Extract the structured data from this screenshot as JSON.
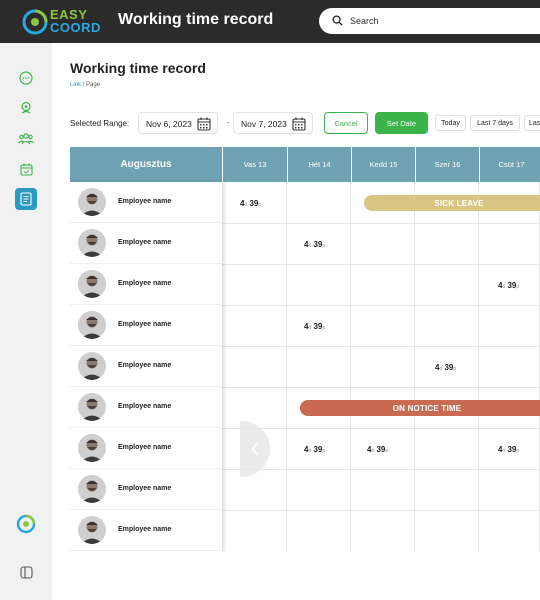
{
  "app": {
    "title": "Working time record",
    "logo_line1": "EASY",
    "logo_line2": "COORD"
  },
  "search": {
    "placeholder": "Search"
  },
  "sidebar": {
    "items": [
      {
        "icon": "chat-bubble-icon"
      },
      {
        "icon": "location-pin-icon"
      },
      {
        "icon": "users-icon"
      },
      {
        "icon": "calendar-icon"
      },
      {
        "icon": "document-icon",
        "active": true
      }
    ],
    "bottom": [
      {
        "icon": "app-logo-icon"
      },
      {
        "icon": "sidebar-toggle-icon"
      }
    ]
  },
  "page": {
    "title": "Working time record",
    "breadcrumb_link": "Link",
    "breadcrumb_sep": "/",
    "breadcrumb_current": "Page"
  },
  "filter": {
    "range_label": "Selected Range:",
    "start_date": "Nov 6, 2023",
    "end_date": "Nov 7, 2023",
    "dash": "-",
    "cancel_label": "Cancel",
    "set_date_label": "Set Date",
    "quick_ranges": [
      "Today",
      "Last 7 days",
      "Las"
    ]
  },
  "grid": {
    "month_header": "Augusztus",
    "days": [
      "Vas 13",
      "Hét 14",
      "Kedd 15",
      "Szer 16",
      "Csüt 17"
    ],
    "employees": [
      "Employee name",
      "Employee name",
      "Employee name",
      "Employee name",
      "Employee name",
      "Employee name",
      "Employee name",
      "Employee name",
      "Employee name"
    ],
    "time_hours": "4",
    "time_minutes": "39",
    "time_unit_h": "ó",
    "time_unit_p": "p",
    "sick_leave_label": "SICK LEAVE",
    "notice_label": "ON NOTICE TIME"
  },
  "colors": {
    "header": "#6fa3b4",
    "accent_green": "#3bb54a",
    "sick_leave": "#d9c683",
    "notice": "#c96b52",
    "active_nav": "#2a9ac0"
  }
}
